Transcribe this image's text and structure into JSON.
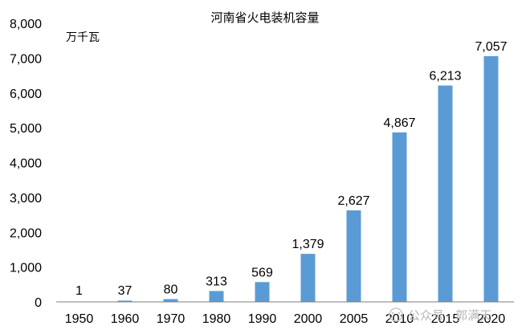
{
  "chart_data": {
    "type": "bar",
    "title": "河南省火电装机容量",
    "unit_label": "万千瓦",
    "categories": [
      "1950",
      "1960",
      "1970",
      "1980",
      "1990",
      "2000",
      "2005",
      "2010",
      "2015",
      "2020"
    ],
    "values": [
      1,
      37,
      80,
      313,
      569,
      1379,
      2627,
      4867,
      6213,
      7057
    ],
    "value_labels": [
      "1",
      "37",
      "80",
      "313",
      "569",
      "1,379",
      "2,627",
      "4,867",
      "6,213",
      "7,057"
    ],
    "y_ticks": [
      0,
      1000,
      2000,
      3000,
      4000,
      5000,
      6000,
      7000,
      8000
    ],
    "y_tick_labels": [
      "0",
      "1,000",
      "2,000",
      "3,000",
      "4,000",
      "5,000",
      "6,000",
      "7,000",
      "8,000"
    ],
    "ylim": [
      0,
      8000
    ],
    "grid": false,
    "bar_color": "#5b9bd5"
  },
  "watermark": "公众号 · 郭满天"
}
